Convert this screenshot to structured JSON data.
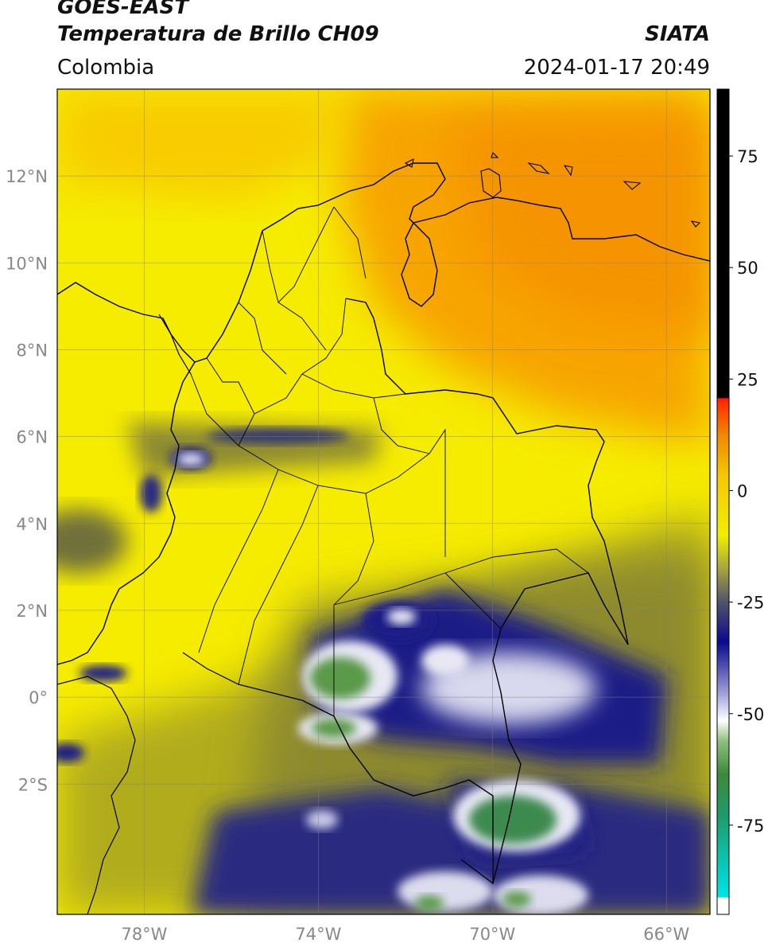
{
  "header": {
    "satellite": "GOES-EAST",
    "product": "Temperatura de Brillo CH09",
    "organization": "SIATA",
    "region": "Colombia",
    "timestamp": "2024-01-17 20:49"
  },
  "map": {
    "lon_range": [
      -80,
      -65
    ],
    "lat_range": [
      -5,
      14
    ],
    "lon_ticks": [
      {
        "value": -78,
        "label": "78°W"
      },
      {
        "value": -74,
        "label": "74°W"
      },
      {
        "value": -70,
        "label": "70°W"
      },
      {
        "value": -66,
        "label": "66°W"
      }
    ],
    "lat_ticks": [
      {
        "value": 12,
        "label": "12°N"
      },
      {
        "value": 10,
        "label": "10°N"
      },
      {
        "value": 8,
        "label": "8°N"
      },
      {
        "value": 6,
        "label": "6°N"
      },
      {
        "value": 4,
        "label": "4°N"
      },
      {
        "value": 2,
        "label": "2°N"
      },
      {
        "value": 0,
        "label": "0°"
      },
      {
        "value": -2,
        "label": "2°S"
      }
    ],
    "gridlines": true,
    "colors": {
      "warm_orange": "#f7a300",
      "yellow": "#f6ee00",
      "olive": "#a7a31e",
      "dark_olive": "#5b5b3c",
      "navy": "#1b1d86",
      "white": "#ffffff",
      "green": "#4c8f43"
    }
  },
  "colorbar": {
    "range": [
      -95,
      90
    ],
    "ticks": [
      {
        "value": 75,
        "label": "75"
      },
      {
        "value": 50,
        "label": "50"
      },
      {
        "value": 25,
        "label": "25"
      },
      {
        "value": 0,
        "label": "0"
      },
      {
        "value": -25,
        "label": "-25"
      },
      {
        "value": -50,
        "label": "-50"
      },
      {
        "value": -75,
        "label": "-75"
      }
    ]
  }
}
